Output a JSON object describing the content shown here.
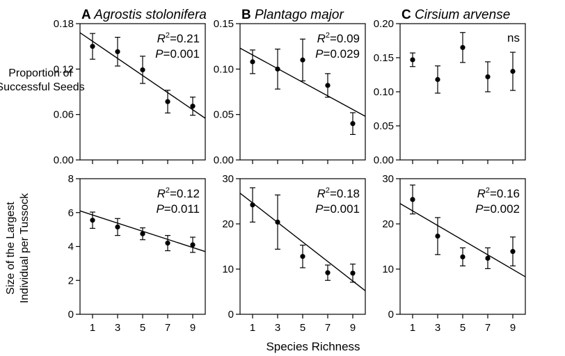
{
  "chart_data": [
    {
      "type": "scatter",
      "panel_letter": "A",
      "title": "Agrostis stolonifera",
      "x": [
        1,
        3,
        5,
        7,
        9
      ],
      "y": [
        0.15,
        0.143,
        0.119,
        0.077,
        0.071
      ],
      "error": [
        0.017,
        0.019,
        0.018,
        0.015,
        0.012
      ],
      "fit": [
        [
          0,
          0.168
        ],
        [
          10,
          0.055
        ]
      ],
      "xlim": [
        0,
        10
      ],
      "ylim": [
        0,
        0.18
      ],
      "yticks": [
        "0.00",
        "0.06",
        "0.12",
        "0.18"
      ],
      "yticks_values": [
        0,
        0.06,
        0.12,
        0.18
      ],
      "xticks": [
        "1",
        "3",
        "5",
        "7",
        "9"
      ],
      "stat_r2": "=0.21",
      "stat_p": "=0.001",
      "xlabel": "",
      "ylabel": ""
    },
    {
      "type": "scatter",
      "panel_letter": "B",
      "title": "Plantago major",
      "x": [
        1,
        3,
        5,
        7,
        9
      ],
      "y": [
        0.108,
        0.1,
        0.11,
        0.082,
        0.04
      ],
      "error": [
        0.013,
        0.022,
        0.023,
        0.013,
        0.012
      ],
      "fit": [
        [
          0,
          0.123
        ],
        [
          10,
          0.048
        ]
      ],
      "xlim": [
        0,
        10
      ],
      "ylim": [
        0,
        0.15
      ],
      "yticks": [
        "0.00",
        "0.05",
        "0.10",
        "0.15"
      ],
      "yticks_values": [
        0,
        0.05,
        0.1,
        0.15
      ],
      "xticks": [
        "1",
        "3",
        "5",
        "7",
        "9"
      ],
      "stat_r2": "=0.09",
      "stat_p": "=0.029",
      "xlabel": "",
      "ylabel": ""
    },
    {
      "type": "scatter",
      "panel_letter": "C",
      "title": "Cirsium arvense",
      "x": [
        1,
        3,
        5,
        7,
        9
      ],
      "y": [
        0.147,
        0.118,
        0.165,
        0.122,
        0.13
      ],
      "error": [
        0.01,
        0.02,
        0.022,
        0.022,
        0.028
      ],
      "fit": null,
      "xlim": [
        0,
        10
      ],
      "ylim": [
        0,
        0.2
      ],
      "yticks": [
        "0.00",
        "0.05",
        "0.10",
        "0.15",
        "0.20"
      ],
      "yticks_values": [
        0,
        0.05,
        0.1,
        0.15,
        0.2
      ],
      "xticks": [
        "1",
        "3",
        "5",
        "7",
        "9"
      ],
      "stat_text": "ns",
      "xlabel": "",
      "ylabel": ""
    },
    {
      "type": "scatter",
      "panel_letter": "",
      "title": "",
      "x": [
        1,
        3,
        5,
        7,
        9
      ],
      "y": [
        5.55,
        5.15,
        4.75,
        4.2,
        4.1
      ],
      "error": [
        0.48,
        0.5,
        0.35,
        0.45,
        0.45
      ],
      "fit": [
        [
          0,
          6.1
        ],
        [
          10,
          3.7
        ]
      ],
      "xlim": [
        0,
        10
      ],
      "ylim": [
        0,
        8
      ],
      "yticks": [
        "0",
        "2",
        "4",
        "6",
        "8"
      ],
      "yticks_values": [
        0,
        2,
        4,
        6,
        8
      ],
      "xticks": [
        "1",
        "3",
        "5",
        "7",
        "9"
      ],
      "stat_r2": "=0.12",
      "stat_p": "=0.011",
      "xlabel": "",
      "ylabel": ""
    },
    {
      "type": "scatter",
      "panel_letter": "",
      "title": "",
      "x": [
        1,
        3,
        5,
        7,
        9
      ],
      "y": [
        24.2,
        20.4,
        12.8,
        9.2,
        9.1
      ],
      "error": [
        3.8,
        6.0,
        2.5,
        1.7,
        2.0
      ],
      "fit": [
        [
          0,
          26.8
        ],
        [
          10,
          5.2
        ]
      ],
      "xlim": [
        0,
        10
      ],
      "ylim": [
        0,
        30
      ],
      "yticks": [
        "0",
        "10",
        "20",
        "30"
      ],
      "yticks_values": [
        0,
        10,
        20,
        30
      ],
      "xticks": [
        "1",
        "3",
        "5",
        "7",
        "9"
      ],
      "stat_r2": "=0.18",
      "stat_p": "=0.001",
      "xlabel": "",
      "ylabel": ""
    },
    {
      "type": "scatter",
      "panel_letter": "",
      "title": "",
      "x": [
        1,
        3,
        5,
        7,
        9
      ],
      "y": [
        25.4,
        17.3,
        12.7,
        12.4,
        13.9
      ],
      "error": [
        3.2,
        4.1,
        2.0,
        2.3,
        3.2
      ],
      "fit": [
        [
          0,
          24.5
        ],
        [
          10,
          8.3
        ]
      ],
      "xlim": [
        0,
        10
      ],
      "ylim": [
        0,
        30
      ],
      "yticks": [
        "0",
        "10",
        "20",
        "30"
      ],
      "yticks_values": [
        0,
        10,
        20,
        30
      ],
      "xticks": [
        "1",
        "3",
        "5",
        "7",
        "9"
      ],
      "stat_r2": "=0.16",
      "stat_p": "=0.002",
      "xlabel": "",
      "ylabel": ""
    }
  ],
  "labels": {
    "ylabel_top_line1": "Proportion of",
    "ylabel_top_line2": "Successful Seeds",
    "ylabel_bottom_line1": "Size of the Largest",
    "ylabel_bottom_line2": "Individual per Tussock",
    "xlabel_shared": "Species Richness",
    "r_symbol": "R",
    "r_exponent": "2",
    "p_symbol": "P"
  },
  "colors": {
    "ink": "#000000",
    "background": "#ffffff"
  }
}
